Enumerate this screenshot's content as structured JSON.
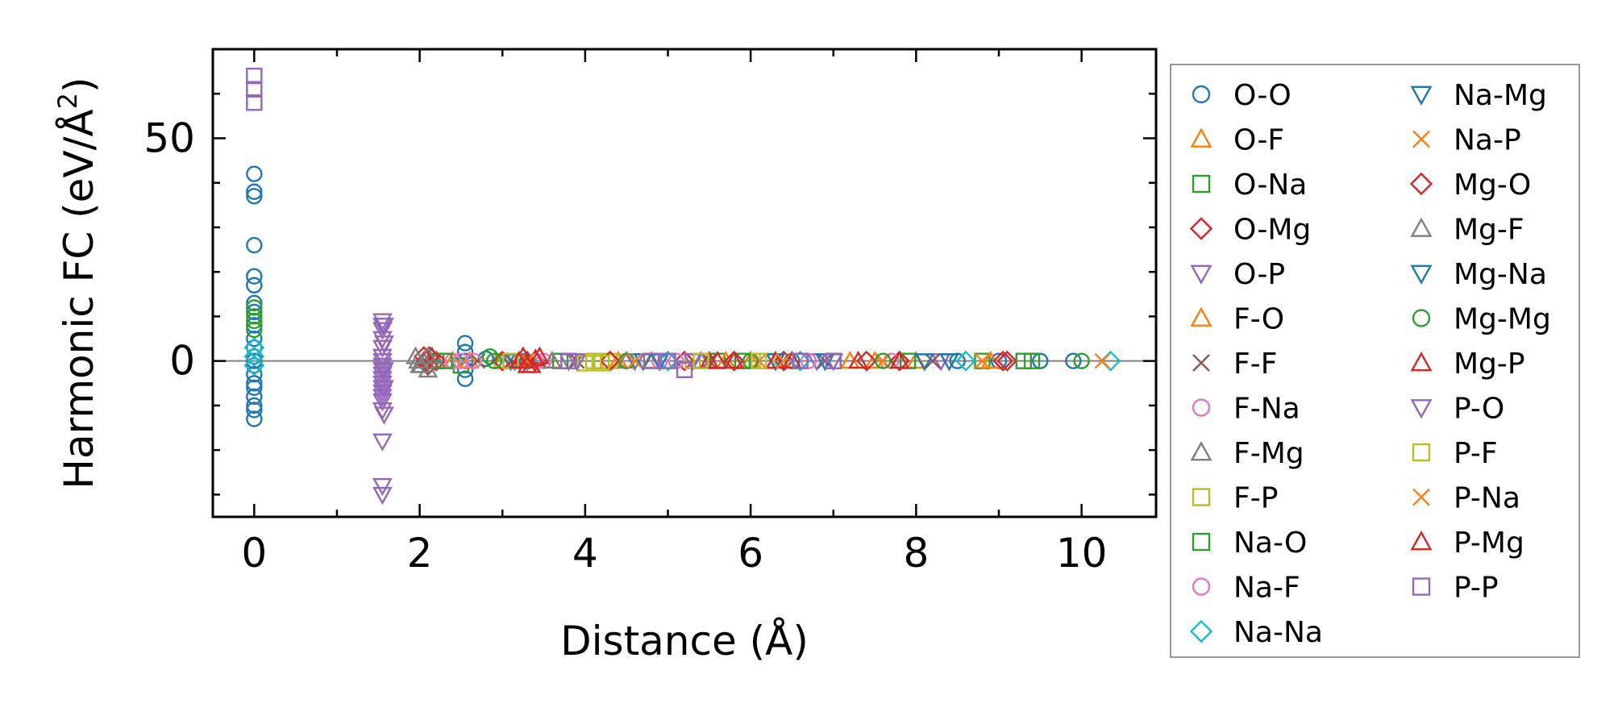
{
  "chart_data": {
    "type": "scatter",
    "xlabel": "Distance (Å)",
    "ylabel_prefix": "Harmonic FC (eV/Å",
    "ylabel_sup": "2",
    "ylabel_suffix": ")",
    "xlim": [
      -0.5,
      10.9
    ],
    "ylim": [
      -35,
      70
    ],
    "xticks": [
      0,
      2,
      4,
      6,
      8,
      10
    ],
    "xminor": [
      1,
      3,
      5,
      7,
      9
    ],
    "yticks": [
      0,
      50
    ],
    "yminor": [
      -30,
      -20,
      -10,
      10,
      20,
      30,
      40,
      60
    ],
    "reference_line_y": 0,
    "legend_position": "right, outside, 2 columns",
    "series": [
      {
        "name": "O-O",
        "marker": "circle",
        "color": "#1f77b4",
        "points": [
          [
            0,
            42
          ],
          [
            0,
            38
          ],
          [
            0,
            37
          ],
          [
            0,
            26
          ],
          [
            0,
            19
          ],
          [
            0,
            17
          ],
          [
            0,
            13
          ],
          [
            0,
            11
          ],
          [
            0,
            8
          ],
          [
            0,
            5
          ],
          [
            0,
            3
          ],
          [
            0,
            1
          ],
          [
            0,
            0
          ],
          [
            0,
            -1
          ],
          [
            0,
            -3
          ],
          [
            0,
            -5
          ],
          [
            0,
            -6
          ],
          [
            0,
            -8
          ],
          [
            0,
            -10
          ],
          [
            0,
            -11
          ],
          [
            0,
            -13
          ],
          [
            2.55,
            4
          ],
          [
            2.55,
            2
          ],
          [
            2.55,
            0
          ],
          [
            2.55,
            -2
          ],
          [
            2.55,
            -4
          ],
          [
            2.8,
            0.5
          ],
          [
            3.2,
            0
          ],
          [
            4.5,
            0
          ],
          [
            5.0,
            0
          ],
          [
            6.5,
            0
          ],
          [
            8.5,
            0
          ],
          [
            9.0,
            0
          ],
          [
            9.5,
            0
          ],
          [
            9.9,
            0
          ]
        ]
      },
      {
        "name": "O-F",
        "marker": "triangle-up",
        "color": "#ff7f0e",
        "points": [
          [
            2.4,
            0
          ],
          [
            3.0,
            0
          ],
          [
            3.6,
            0
          ],
          [
            4.8,
            0
          ],
          [
            6.0,
            0
          ],
          [
            7.2,
            0
          ],
          [
            8.0,
            0
          ],
          [
            8.9,
            0
          ]
        ]
      },
      {
        "name": "O-Na",
        "marker": "square",
        "color": "#2ca02c",
        "points": [
          [
            2.2,
            0
          ],
          [
            2.5,
            -1
          ],
          [
            3.1,
            0
          ],
          [
            4.2,
            0
          ],
          [
            5.6,
            0
          ],
          [
            7.0,
            0
          ],
          [
            8.8,
            0
          ],
          [
            9.4,
            0
          ]
        ]
      },
      {
        "name": "O-Mg",
        "marker": "diamond",
        "color": "#d62728",
        "points": [
          [
            2.05,
            1
          ],
          [
            2.1,
            -1
          ],
          [
            2.2,
            0
          ],
          [
            3.4,
            0
          ],
          [
            5.2,
            0
          ],
          [
            6.4,
            0
          ],
          [
            7.8,
            0
          ],
          [
            9.1,
            0
          ]
        ]
      },
      {
        "name": "O-P",
        "marker": "triangle-down",
        "color": "#9467bd",
        "points": [
          [
            1.55,
            9
          ],
          [
            1.55,
            8
          ],
          [
            1.55,
            7
          ],
          [
            1.55,
            5
          ],
          [
            1.55,
            3
          ],
          [
            1.55,
            1
          ],
          [
            1.55,
            0
          ],
          [
            1.55,
            -1
          ],
          [
            1.55,
            -2
          ],
          [
            1.55,
            -3
          ],
          [
            1.55,
            -4
          ],
          [
            1.55,
            -5
          ],
          [
            1.55,
            -6
          ],
          [
            1.55,
            -7
          ],
          [
            1.55,
            -8
          ],
          [
            1.55,
            -9
          ],
          [
            1.55,
            -11
          ],
          [
            1.55,
            -18
          ],
          [
            1.55,
            -28
          ],
          [
            1.55,
            -30
          ],
          [
            3.8,
            0
          ],
          [
            4.6,
            0
          ],
          [
            6.8,
            0
          ],
          [
            8.3,
            0
          ]
        ]
      },
      {
        "name": "F-O",
        "marker": "triangle-up",
        "color": "#ff7f0e",
        "points": [
          [
            2.6,
            0
          ],
          [
            3.3,
            0
          ],
          [
            4.4,
            0
          ],
          [
            5.7,
            0
          ],
          [
            7.5,
            0
          ],
          [
            8.9,
            0
          ]
        ]
      },
      {
        "name": "F-F",
        "marker": "x",
        "color": "#8c564b",
        "points": [
          [
            2.7,
            0
          ],
          [
            3.9,
            0
          ],
          [
            5.5,
            0
          ],
          [
            6.9,
            0
          ],
          [
            8.2,
            0
          ]
        ]
      },
      {
        "name": "F-Na",
        "marker": "circle",
        "color": "#e377c2",
        "points": [
          [
            2.4,
            0
          ],
          [
            2.65,
            0
          ],
          [
            3.5,
            0
          ],
          [
            4.9,
            0
          ],
          [
            6.6,
            0
          ],
          [
            7.7,
            0
          ]
        ]
      },
      {
        "name": "F-Mg",
        "marker": "triangle-up",
        "color": "#7f7f7f",
        "points": [
          [
            1.95,
            1
          ],
          [
            2.0,
            -1
          ],
          [
            2.05,
            0
          ],
          [
            2.1,
            -2
          ],
          [
            2.15,
            1
          ],
          [
            2.2,
            0
          ],
          [
            3.2,
            0
          ],
          [
            4.5,
            0
          ]
        ]
      },
      {
        "name": "F-P",
        "marker": "square",
        "color": "#bcbd22",
        "points": [
          [
            3.0,
            0
          ],
          [
            4.0,
            -0.5
          ],
          [
            4.3,
            0
          ],
          [
            5.3,
            0
          ],
          [
            6.2,
            0
          ]
        ]
      },
      {
        "name": "Na-O",
        "marker": "square",
        "color": "#2ca02c",
        "points": [
          [
            2.3,
            0
          ],
          [
            3.7,
            0
          ],
          [
            5.9,
            0
          ],
          [
            7.9,
            0
          ],
          [
            9.3,
            0
          ]
        ]
      },
      {
        "name": "Na-F",
        "marker": "circle",
        "color": "#e377c2",
        "points": [
          [
            2.5,
            0
          ],
          [
            3.4,
            0
          ],
          [
            5.1,
            0
          ],
          [
            6.7,
            0
          ]
        ]
      },
      {
        "name": "Na-Na",
        "marker": "diamond",
        "color": "#17becf",
        "points": [
          [
            0,
            3
          ],
          [
            0,
            1
          ],
          [
            0,
            -1
          ],
          [
            3.3,
            0
          ],
          [
            5.0,
            0
          ],
          [
            6.6,
            0
          ],
          [
            8.6,
            0
          ],
          [
            10.35,
            0
          ]
        ]
      },
      {
        "name": "Na-Mg",
        "marker": "triangle-down",
        "color": "#1f77b4",
        "points": [
          [
            3.1,
            0
          ],
          [
            4.7,
            0
          ],
          [
            6.3,
            0
          ],
          [
            8.1,
            0
          ]
        ]
      },
      {
        "name": "Na-P",
        "marker": "x",
        "color": "#ff7f0e",
        "points": [
          [
            3.2,
            0
          ],
          [
            4.4,
            0
          ],
          [
            6.1,
            0
          ],
          [
            7.6,
            0
          ],
          [
            10.25,
            0
          ]
        ]
      },
      {
        "name": "Mg-O",
        "marker": "diamond",
        "color": "#d62728",
        "points": [
          [
            2.08,
            0
          ],
          [
            2.12,
            1
          ],
          [
            3.0,
            0
          ],
          [
            4.3,
            0
          ],
          [
            5.8,
            0
          ],
          [
            7.4,
            0
          ],
          [
            9.05,
            0
          ]
        ]
      },
      {
        "name": "Mg-F",
        "marker": "triangle-up",
        "color": "#7f7f7f",
        "points": [
          [
            1.98,
            0
          ],
          [
            2.02,
            -1
          ],
          [
            2.1,
            1
          ],
          [
            3.6,
            0
          ],
          [
            5.4,
            0
          ]
        ]
      },
      {
        "name": "Mg-Na",
        "marker": "triangle-down",
        "color": "#1f77b4",
        "points": [
          [
            3.15,
            0
          ],
          [
            4.9,
            0
          ],
          [
            6.9,
            0
          ],
          [
            8.4,
            0
          ]
        ]
      },
      {
        "name": "Mg-Mg",
        "marker": "circle",
        "color": "#2ca02c",
        "points": [
          [
            0,
            12
          ],
          [
            0,
            10
          ],
          [
            0,
            9
          ],
          [
            0,
            7
          ],
          [
            2.85,
            1
          ],
          [
            2.9,
            0
          ],
          [
            4.5,
            0
          ],
          [
            6.0,
            0
          ],
          [
            7.6,
            0
          ],
          [
            10.0,
            0
          ]
        ]
      },
      {
        "name": "Mg-P",
        "marker": "triangle-up",
        "color": "#d62728",
        "points": [
          [
            3.25,
            1
          ],
          [
            3.3,
            0
          ],
          [
            3.35,
            -1
          ],
          [
            3.4,
            0.5
          ],
          [
            5.5,
            0
          ],
          [
            5.8,
            0
          ],
          [
            6.3,
            0
          ],
          [
            7.8,
            0
          ]
        ]
      },
      {
        "name": "P-O",
        "marker": "triangle-down",
        "color": "#9467bd",
        "points": [
          [
            1.57,
            8
          ],
          [
            1.57,
            4
          ],
          [
            1.57,
            -2
          ],
          [
            1.57,
            -6
          ],
          [
            1.57,
            -12
          ],
          [
            3.9,
            0
          ],
          [
            5.3,
            0
          ],
          [
            7.0,
            0
          ]
        ]
      },
      {
        "name": "P-F",
        "marker": "square",
        "color": "#bcbd22",
        "points": [
          [
            3.1,
            0
          ],
          [
            4.1,
            0
          ],
          [
            4.2,
            -0.5
          ],
          [
            5.4,
            0
          ],
          [
            6.1,
            0
          ]
        ]
      },
      {
        "name": "P-Na",
        "marker": "x",
        "color": "#ff7f0e",
        "points": [
          [
            3.3,
            0
          ],
          [
            4.6,
            0
          ],
          [
            6.4,
            0
          ],
          [
            8.8,
            0
          ]
        ]
      },
      {
        "name": "P-Mg",
        "marker": "triangle-up",
        "color": "#d62728",
        "points": [
          [
            3.2,
            0
          ],
          [
            3.3,
            -1
          ],
          [
            3.45,
            1
          ],
          [
            5.6,
            0
          ],
          [
            6.5,
            0
          ],
          [
            7.3,
            0
          ]
        ]
      },
      {
        "name": "P-P",
        "marker": "square",
        "color": "#9467bd",
        "points": [
          [
            0,
            64
          ],
          [
            0,
            61
          ],
          [
            0,
            58
          ],
          [
            3.8,
            0
          ],
          [
            4.8,
            0
          ],
          [
            5.0,
            0
          ],
          [
            5.2,
            -2
          ],
          [
            6.6,
            0
          ],
          [
            7.0,
            0
          ]
        ]
      }
    ]
  }
}
